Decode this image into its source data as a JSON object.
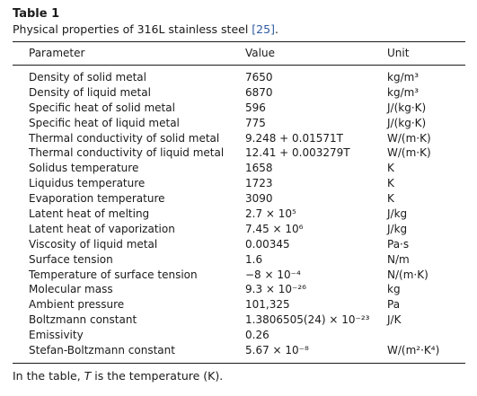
{
  "caption": {
    "label": "Table 1",
    "text": "Physical properties of 316L stainless steel ",
    "ref": "[25]",
    "end": "."
  },
  "table": {
    "headers": [
      "Parameter",
      "Value",
      "Unit"
    ],
    "rows": [
      {
        "parameter": "Density of solid metal",
        "value": "7650",
        "unit": "kg/m³"
      },
      {
        "parameter": "Density of liquid metal",
        "value": "6870",
        "unit": "kg/m³"
      },
      {
        "parameter": "Specific heat of solid metal",
        "value": "596",
        "unit": "J/(kg·K)"
      },
      {
        "parameter": "Specific heat of liquid metal",
        "value": "775",
        "unit": "J/(kg·K)"
      },
      {
        "parameter": "Thermal conductivity of solid metal",
        "value": "9.248 + 0.01571T",
        "unit": "W/(m·K)"
      },
      {
        "parameter": "Thermal conductivity of liquid metal",
        "value": "12.41 + 0.003279T",
        "unit": "W/(m·K)"
      },
      {
        "parameter": "Solidus temperature",
        "value": "1658",
        "unit": "K"
      },
      {
        "parameter": "Liquidus temperature",
        "value": "1723",
        "unit": "K"
      },
      {
        "parameter": "Evaporation temperature",
        "value": "3090",
        "unit": "K"
      },
      {
        "parameter": "Latent heat of melting",
        "value": "2.7 × 10⁵",
        "unit": "J/kg"
      },
      {
        "parameter": "Latent heat of vaporization",
        "value": "7.45 × 10⁶",
        "unit": "J/kg"
      },
      {
        "parameter": "Viscosity of liquid metal",
        "value": "0.00345",
        "unit": "Pa·s"
      },
      {
        "parameter": "Surface tension",
        "value": "1.6",
        "unit": "N/m"
      },
      {
        "parameter": "Temperature of surface tension",
        "value": "−8 × 10⁻⁴",
        "unit": "N/(m·K)"
      },
      {
        "parameter": "Molecular mass",
        "value": "9.3 × 10⁻²⁶",
        "unit": "kg"
      },
      {
        "parameter": "Ambient pressure",
        "value": "101,325",
        "unit": "Pa"
      },
      {
        "parameter": "Boltzmann constant",
        "value": "1.3806505(24) × 10⁻²³",
        "unit": "J/K"
      },
      {
        "parameter": "Emissivity",
        "value": "0.26",
        "unit": ""
      },
      {
        "parameter": "Stefan-Boltzmann constant",
        "value": "5.67 × 10⁻⁸",
        "unit": "W/(m²·K⁴)"
      }
    ]
  },
  "footnote": {
    "before": "In the table, ",
    "symbol": "T",
    "after": " is the temperature (K)."
  }
}
